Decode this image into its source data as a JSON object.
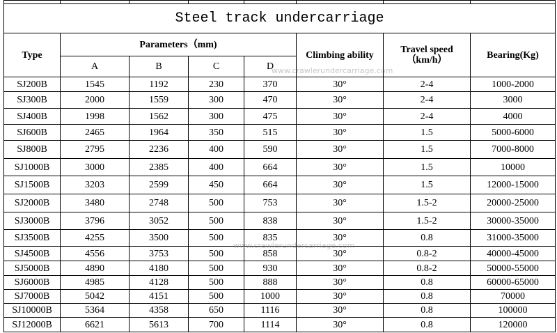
{
  "title": "Steel track undercarriage",
  "header": {
    "type": "Type",
    "parameters": "Parameters（mm)",
    "columns": [
      "A",
      "B",
      "C",
      "D"
    ],
    "climbing": "Climbing ability",
    "travel": [
      "Travel speed",
      "（km/h）"
    ],
    "bearing": "Bearing(Kg)"
  },
  "rows": [
    [
      "SJ200B",
      "1545",
      "1192",
      "230",
      "370",
      "30°",
      "2-4",
      "1000-2000"
    ],
    [
      "SJ300B",
      "2000",
      "1559",
      "300",
      "470",
      "30°",
      "2-4",
      "3000"
    ],
    [
      "SJ400B",
      "1998",
      "1562",
      "300",
      "475",
      "30°",
      "2-4",
      "4000"
    ],
    [
      "SJ600B",
      "2465",
      "1964",
      "350",
      "515",
      "30°",
      "1.5",
      "5000-6000"
    ],
    [
      "SJ800B",
      "2795",
      "2236",
      "400",
      "590",
      "30°",
      "1.5",
      "7000-8000"
    ],
    [
      "SJ1000B",
      "3000",
      "2385",
      "400",
      "664",
      "30°",
      "1.5",
      "10000"
    ],
    [
      "SJ1500B",
      "3203",
      "2599",
      "450",
      "664",
      "30°",
      "1.5",
      "12000-15000"
    ],
    [
      "SJ2000B",
      "3480",
      "2748",
      "500",
      "753",
      "30°",
      "1.5-2",
      "20000-25000"
    ],
    [
      "SJ3000B",
      "3796",
      "3052",
      "500",
      "838",
      "30°",
      "1.5-2",
      "30000-35000"
    ],
    [
      "SJ3500B",
      "4255",
      "3500",
      "500",
      "835",
      "30°",
      "0.8",
      "31000-35000"
    ],
    [
      "SJ4500B",
      "4556",
      "3753",
      "500",
      "858",
      "30°",
      "0.8-2",
      "40000-45000"
    ],
    [
      "SJ5000B",
      "4890",
      "4180",
      "500",
      "930",
      "30°",
      "0.8-2",
      "50000-55000"
    ],
    [
      "SJ6000B",
      "4985",
      "4128",
      "500",
      "888",
      "30°",
      "0.8",
      "60000-65000"
    ],
    [
      "SJ7000B",
      "5042",
      "4151",
      "500",
      "1000",
      "30°",
      "0.8",
      "70000"
    ],
    [
      "SJ10000B",
      "5364",
      "4358",
      "650",
      "1116",
      "30°",
      "0.8",
      "100000"
    ],
    [
      "SJ12000B",
      "6621",
      "5613",
      "700",
      "1114",
      "30°",
      "0.8",
      "120000"
    ]
  ],
  "watermarks": [
    "www.crawlerundercarriage.com",
    "www.crawlerundercarriage.com"
  ]
}
